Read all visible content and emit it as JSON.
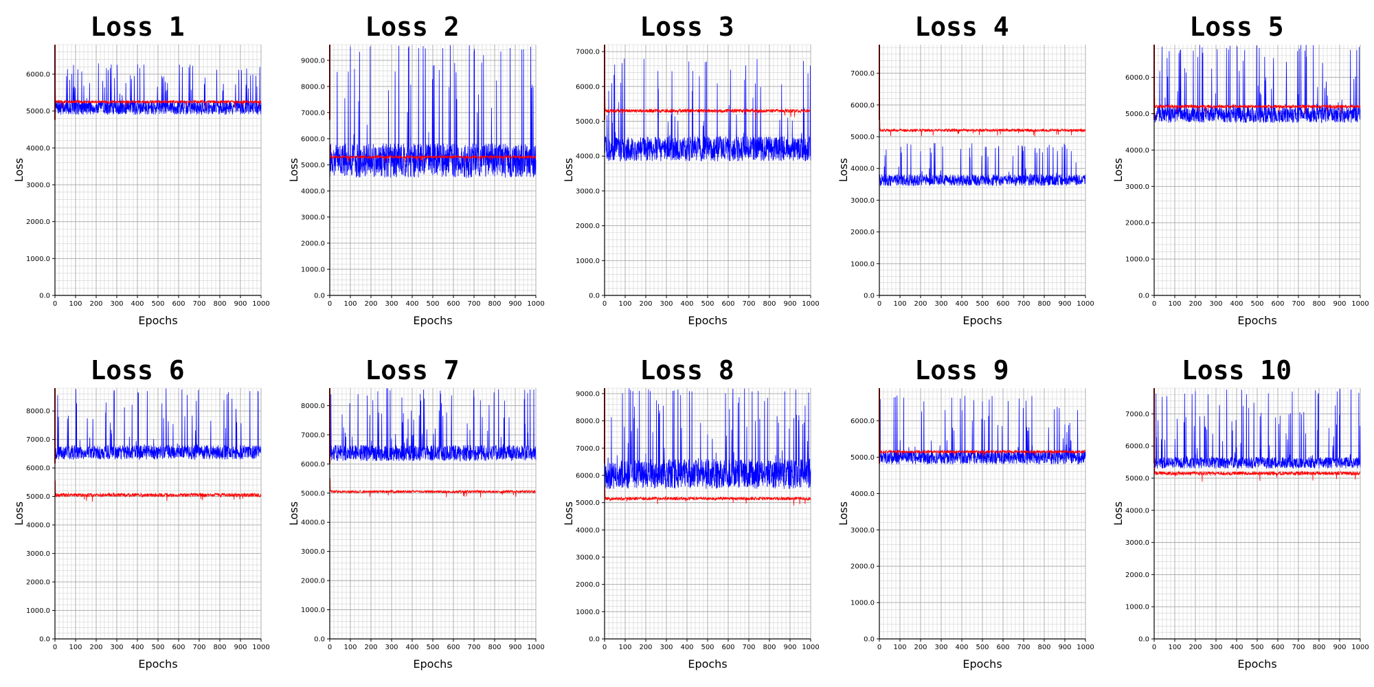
{
  "colors": {
    "series_blue": "#0000ff",
    "series_red": "#ff0000",
    "grid": "#c8c8c8"
  },
  "chart_data": [
    {
      "type": "line",
      "title": "Loss 1",
      "xlabel": "Epochs",
      "ylabel": "Loss",
      "xlim": [
        0,
        1000
      ],
      "ylim": [
        0,
        6800
      ],
      "xticks": [
        "0",
        "100",
        "200",
        "300",
        "400",
        "500",
        "600",
        "700",
        "800",
        "900",
        "1000"
      ],
      "yticks": [
        "0.0",
        "1000.0",
        "2000.0",
        "3000.0",
        "4000.0",
        "5000.0",
        "6000.0"
      ],
      "grid": true,
      "series": [
        {
          "color": "#0000ff",
          "base": 4900,
          "spread": 700,
          "spikes": 6300
        },
        {
          "color": "#ff0000",
          "base": 5250,
          "spread": 60,
          "spikes": 5350
        }
      ]
    },
    {
      "type": "line",
      "title": "Loss 2",
      "xlabel": "Epochs",
      "ylabel": "Loss",
      "xlim": [
        0,
        1000
      ],
      "ylim": [
        0,
        9600
      ],
      "xticks": [
        "0",
        "100",
        "200",
        "300",
        "400",
        "500",
        "600",
        "700",
        "800",
        "900",
        "1000"
      ],
      "yticks": [
        "0.0",
        "1000.0",
        "2000.0",
        "3000.0",
        "4000.0",
        "5000.0",
        "6000.0",
        "7000.0",
        "8000.0",
        "9000.0"
      ],
      "grid": true,
      "series": [
        {
          "color": "#0000ff",
          "base": 4500,
          "spread": 2400,
          "spikes": 9600
        },
        {
          "color": "#ff0000",
          "base": 5300,
          "spread": 80,
          "spikes": 5450
        }
      ]
    },
    {
      "type": "line",
      "title": "Loss 3",
      "xlabel": "Epochs",
      "ylabel": "Loss",
      "xlim": [
        0,
        1000
      ],
      "ylim": [
        0,
        7200
      ],
      "xticks": [
        "0",
        "100",
        "200",
        "300",
        "400",
        "500",
        "600",
        "700",
        "800",
        "900",
        "1000"
      ],
      "yticks": [
        "0.0",
        "1000.0",
        "2000.0",
        "3000.0",
        "4000.0",
        "5000.0",
        "6000.0",
        "7000.0"
      ],
      "grid": true,
      "series": [
        {
          "color": "#0000ff",
          "base": 3850,
          "spread": 1300,
          "spikes": 6800
        },
        {
          "color": "#ff0000",
          "base": 5300,
          "spread": 80,
          "spikes": 5450
        }
      ]
    },
    {
      "type": "line",
      "title": "Loss 4",
      "xlabel": "Epochs",
      "ylabel": "Loss",
      "xlim": [
        0,
        1000
      ],
      "ylim": [
        0,
        7900
      ],
      "xticks": [
        "0",
        "100",
        "200",
        "300",
        "400",
        "500",
        "600",
        "700",
        "800",
        "900",
        "1000"
      ],
      "yticks": [
        "0.0",
        "1000.0",
        "2000.0",
        "3000.0",
        "4000.0",
        "5000.0",
        "6000.0",
        "7000.0"
      ],
      "grid": true,
      "series": [
        {
          "color": "#0000ff",
          "base": 3450,
          "spread": 650,
          "spikes": 4800
        },
        {
          "color": "#ff0000",
          "base": 5200,
          "spread": 70,
          "spikes": 5350
        }
      ]
    },
    {
      "type": "line",
      "title": "Loss 5",
      "xlabel": "Epochs",
      "ylabel": "Loss",
      "xlim": [
        0,
        1000
      ],
      "ylim": [
        0,
        6900
      ],
      "xticks": [
        "0",
        "100",
        "200",
        "300",
        "400",
        "500",
        "600",
        "700",
        "800",
        "900",
        "1000"
      ],
      "yticks": [
        "0.0",
        "1000.0",
        "2000.0",
        "3000.0",
        "4000.0",
        "5000.0",
        "6000.0"
      ],
      "grid": true,
      "series": [
        {
          "color": "#0000ff",
          "base": 4750,
          "spread": 800,
          "spikes": 6900
        },
        {
          "color": "#ff0000",
          "base": 5200,
          "spread": 70,
          "spikes": 5350
        }
      ]
    },
    {
      "type": "line",
      "title": "Loss 6",
      "xlabel": "Epochs",
      "ylabel": "Loss",
      "xlim": [
        0,
        1000
      ],
      "ylim": [
        0,
        8800
      ],
      "xticks": [
        "0",
        "100",
        "200",
        "300",
        "400",
        "500",
        "600",
        "700",
        "800",
        "900",
        "1000"
      ],
      "yticks": [
        "0.0",
        "1000.0",
        "2000.0",
        "3000.0",
        "4000.0",
        "5000.0",
        "6000.0",
        "7000.0",
        "8000.0"
      ],
      "grid": true,
      "series": [
        {
          "color": "#0000ff",
          "base": 6300,
          "spread": 900,
          "spikes": 8800
        },
        {
          "color": "#ff0000",
          "base": 5050,
          "spread": 100,
          "spikes": 5250
        }
      ]
    },
    {
      "type": "line",
      "title": "Loss 7",
      "xlabel": "Epochs",
      "ylabel": "Loss",
      "xlim": [
        0,
        1000
      ],
      "ylim": [
        0,
        8600
      ],
      "xticks": [
        "0",
        "100",
        "200",
        "300",
        "400",
        "500",
        "600",
        "700",
        "800",
        "900",
        "1000"
      ],
      "yticks": [
        "0.0",
        "1000.0",
        "2000.0",
        "3000.0",
        "4000.0",
        "5000.0",
        "6000.0",
        "7000.0",
        "8000.0"
      ],
      "grid": true,
      "series": [
        {
          "color": "#0000ff",
          "base": 6100,
          "spread": 1000,
          "spikes": 8600
        },
        {
          "color": "#ff0000",
          "base": 5050,
          "spread": 70,
          "spikes": 5200
        }
      ]
    },
    {
      "type": "line",
      "title": "Loss 8",
      "xlabel": "Epochs",
      "ylabel": "Loss",
      "xlim": [
        0,
        1000
      ],
      "ylim": [
        0,
        9200
      ],
      "xticks": [
        "0",
        "100",
        "200",
        "300",
        "400",
        "500",
        "600",
        "700",
        "800",
        "900",
        "1000"
      ],
      "yticks": [
        "0.0",
        "1000.0",
        "2000.0",
        "3000.0",
        "4000.0",
        "5000.0",
        "6000.0",
        "7000.0",
        "8000.0",
        "9000.0"
      ],
      "grid": true,
      "series": [
        {
          "color": "#0000ff",
          "base": 5500,
          "spread": 2000,
          "spikes": 9200
        },
        {
          "color": "#ff0000",
          "base": 5150,
          "spread": 90,
          "spikes": 5350
        }
      ]
    },
    {
      "type": "line",
      "title": "Loss 9",
      "xlabel": "Epochs",
      "ylabel": "Loss",
      "xlim": [
        0,
        1000
      ],
      "ylim": [
        0,
        6900
      ],
      "xticks": [
        "0",
        "100",
        "200",
        "300",
        "400",
        "500",
        "600",
        "700",
        "800",
        "900",
        "1000"
      ],
      "yticks": [
        "0.0",
        "1000.0",
        "2000.0",
        "3000.0",
        "4000.0",
        "5000.0",
        "6000.0"
      ],
      "grid": true,
      "series": [
        {
          "color": "#0000ff",
          "base": 4800,
          "spread": 700,
          "spikes": 6700
        },
        {
          "color": "#ff0000",
          "base": 5150,
          "spread": 60,
          "spikes": 5300
        }
      ]
    },
    {
      "type": "line",
      "title": "Loss 10",
      "xlabel": "Epochs",
      "ylabel": "Loss",
      "xlim": [
        0,
        1000
      ],
      "ylim": [
        0,
        7800
      ],
      "xticks": [
        "0",
        "100",
        "200",
        "300",
        "400",
        "500",
        "600",
        "700",
        "800",
        "900",
        "1000"
      ],
      "yticks": [
        "0.0",
        "1000.0",
        "2000.0",
        "3000.0",
        "4000.0",
        "5000.0",
        "6000.0",
        "7000.0"
      ],
      "grid": true,
      "series": [
        {
          "color": "#0000ff",
          "base": 5300,
          "spread": 650,
          "spikes": 7800
        },
        {
          "color": "#ff0000",
          "base": 5150,
          "spread": 90,
          "spikes": 5400
        }
      ]
    }
  ]
}
